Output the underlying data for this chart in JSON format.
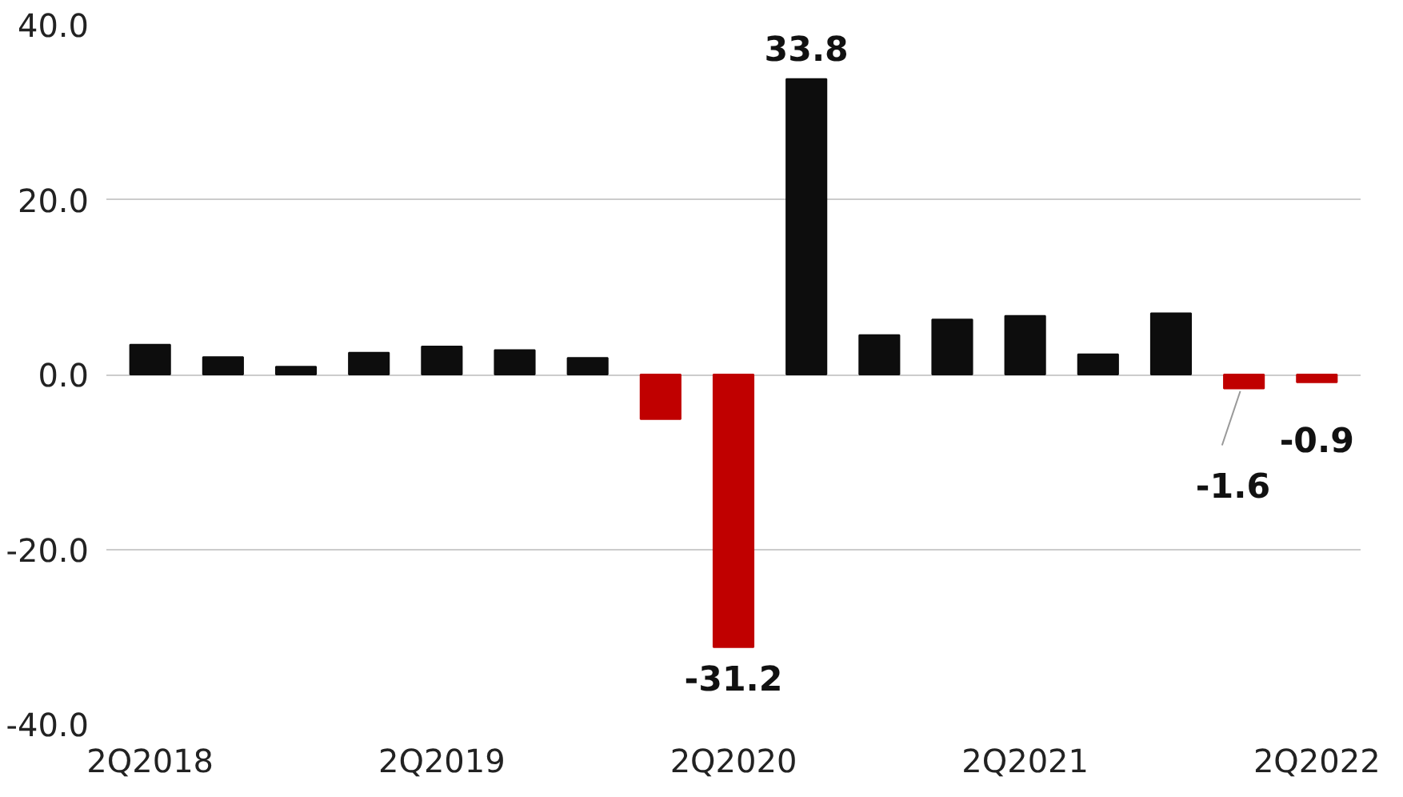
{
  "chart_data": {
    "type": "bar",
    "categories": [
      "2Q2018",
      null,
      null,
      null,
      "2Q2019",
      null,
      null,
      null,
      "2Q2020",
      null,
      null,
      null,
      "2Q2021",
      null,
      null,
      null,
      "2Q2022"
    ],
    "values": [
      3.4,
      2.0,
      0.9,
      2.5,
      3.2,
      2.8,
      1.9,
      -5.1,
      -31.2,
      33.8,
      4.5,
      6.3,
      6.7,
      2.3,
      7.0,
      -1.6,
      -0.9
    ],
    "colors": [
      "#0d0d0d",
      "#0d0d0d",
      "#0d0d0d",
      "#0d0d0d",
      "#0d0d0d",
      "#0d0d0d",
      "#0d0d0d",
      "#c00000",
      "#c00000",
      "#0d0d0d",
      "#0d0d0d",
      "#0d0d0d",
      "#0d0d0d",
      "#0d0d0d",
      "#0d0d0d",
      "#c00000",
      "#c00000"
    ],
    "value_labels": [
      null,
      null,
      null,
      null,
      null,
      null,
      null,
      null,
      "-31.2",
      "33.8",
      null,
      null,
      null,
      null,
      null,
      "-1.6",
      "-0.9"
    ],
    "ylim": [
      -40,
      40
    ],
    "yticks": [
      {
        "value": -40,
        "label": "-40.0"
      },
      {
        "value": -20,
        "label": "-20.0"
      },
      {
        "value": 0,
        "label": "0.0"
      },
      {
        "value": 20,
        "label": "20.0"
      },
      {
        "value": 40,
        "label": "40.0"
      }
    ],
    "grid": "y"
  }
}
